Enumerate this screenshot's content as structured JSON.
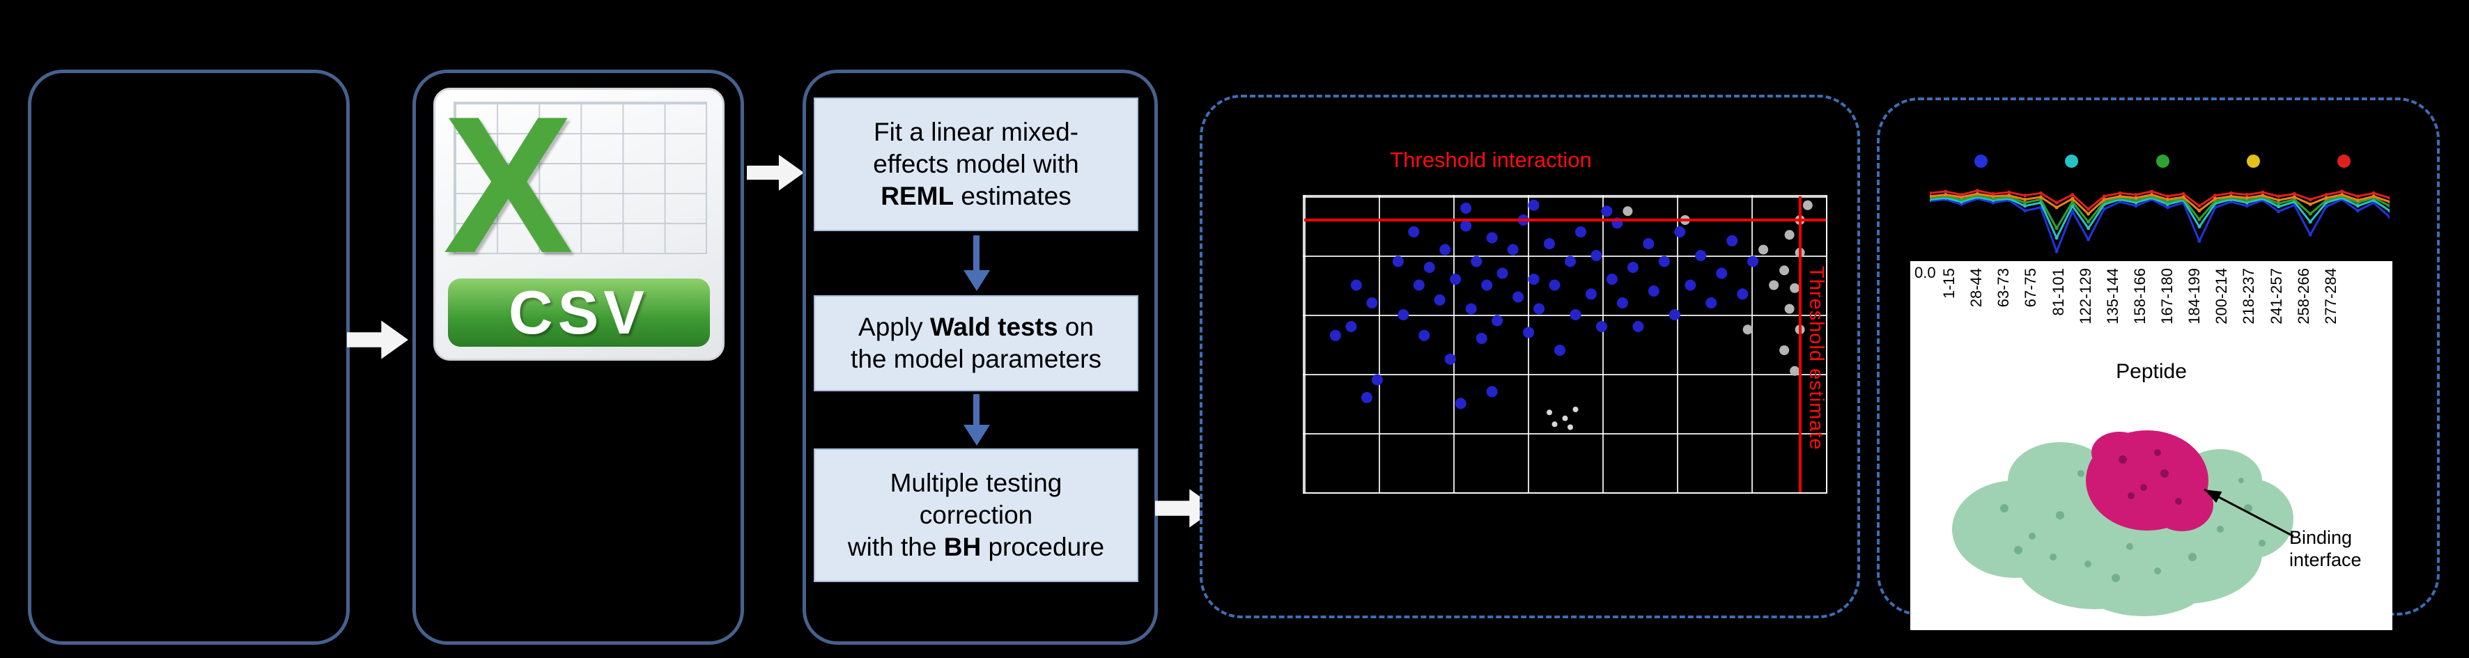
{
  "figure": {
    "background": "#000000",
    "solid_panel_border": "#46618e",
    "dashed_panel_border": "#3e6db6",
    "step_box_fill": "#dde7f4",
    "threshold_color": "#ff0c0c"
  },
  "csv": {
    "x_letter": "X",
    "label": "CSV"
  },
  "steps": {
    "s1": {
      "l1": "Fit a linear mixed-",
      "l2": "effects model with",
      "l3_bold": "REML",
      "l3_rest": " estimates"
    },
    "s2": {
      "l1_pre": "Apply ",
      "l1_bold": "Wald tests",
      "l1_post": " on",
      "l2": "the model parameters"
    },
    "s3": {
      "l1": "Multiple testing",
      "l2": "correction",
      "l3_pre": "with the ",
      "l3_bold": "BH",
      "l3_rest": " procedure"
    }
  },
  "results": {
    "binding_l1": "Binding",
    "binding_l2": "interface"
  },
  "chart_data": [
    {
      "type": "scatter",
      "name": "volcano-style-threshold-plot",
      "grid": {
        "cols": 7,
        "rows": 5,
        "grid_on": true,
        "background": "#000000",
        "gridline_color": "#ffffff"
      },
      "annotations": [
        "Threshold interaction",
        "Threshold estimate"
      ],
      "thresholds": {
        "horizontal_pct_from_top": 8,
        "vertical_pct_from_left": 95,
        "color": "#ee0000"
      },
      "series": [
        {
          "name": "blue-points",
          "color": "#2424cc",
          "r": 8,
          "points": [
            [
              6,
              47
            ],
            [
              9,
              44
            ],
            [
              10,
              30
            ],
            [
              12,
              68
            ],
            [
              13,
              36
            ],
            [
              14,
              62
            ],
            [
              18,
              22
            ],
            [
              19,
              40
            ],
            [
              21,
              12
            ],
            [
              22,
              30
            ],
            [
              23,
              47
            ],
            [
              24,
              24
            ],
            [
              26,
              35
            ],
            [
              27,
              18
            ],
            [
              28,
              55
            ],
            [
              29,
              28
            ],
            [
              30,
              70
            ],
            [
              31,
              4
            ],
            [
              31,
              10
            ],
            [
              32,
              38
            ],
            [
              33,
              22
            ],
            [
              34,
              48
            ],
            [
              35,
              30
            ],
            [
              36,
              14
            ],
            [
              36,
              66
            ],
            [
              37,
              42
            ],
            [
              38,
              26
            ],
            [
              40,
              18
            ],
            [
              41,
              34
            ],
            [
              42,
              8
            ],
            [
              43,
              46
            ],
            [
              44,
              3
            ],
            [
              44,
              28
            ],
            [
              45,
              38
            ],
            [
              47,
              16
            ],
            [
              48,
              30
            ],
            [
              49,
              52
            ],
            [
              51,
              22
            ],
            [
              52,
              40
            ],
            [
              53,
              12
            ],
            [
              55,
              33
            ],
            [
              56,
              20
            ],
            [
              57,
              44
            ],
            [
              58,
              5
            ],
            [
              59,
              28
            ],
            [
              60,
              9
            ],
            [
              61,
              36
            ],
            [
              63,
              24
            ],
            [
              64,
              44
            ],
            [
              66,
              16
            ],
            [
              67,
              32
            ],
            [
              69,
              22
            ],
            [
              71,
              40
            ],
            [
              72,
              12
            ],
            [
              74,
              30
            ],
            [
              76,
              20
            ],
            [
              78,
              36
            ],
            [
              80,
              26
            ],
            [
              82,
              15
            ],
            [
              84,
              33
            ],
            [
              86,
              22
            ]
          ]
        },
        {
          "name": "gray-points",
          "color": "#b5b5b5",
          "r": 7,
          "points": [
            [
              96.5,
              3
            ],
            [
              95,
              8
            ],
            [
              93,
              13
            ],
            [
              95,
              19
            ],
            [
              92,
              25
            ],
            [
              94,
              31
            ],
            [
              93,
              38
            ],
            [
              95,
              45
            ],
            [
              92,
              52
            ],
            [
              94,
              59
            ],
            [
              90,
              30
            ],
            [
              88,
              18
            ],
            [
              85,
              45
            ],
            [
              73,
              8
            ],
            [
              62,
              5
            ]
          ]
        },
        {
          "name": "faint-points",
          "color": "#d8d8d8",
          "r": 4,
          "points": [
            [
              47,
              73
            ],
            [
              50,
              75
            ],
            [
              52,
              72
            ],
            [
              48,
              77
            ],
            [
              51,
              78
            ]
          ]
        }
      ]
    },
    {
      "type": "line",
      "name": "peptide-profile-plot",
      "legend_dot_colors": [
        "#2233dd",
        "#27c3c3",
        "#2fa12f",
        "#e3c117",
        "#e02020"
      ],
      "y_tick": "0.0",
      "xlabel": "Peptide",
      "x_tick_labels": [
        "1-15",
        "28-44",
        "63-73",
        "67-75",
        "81-101",
        "122-129",
        "135-144",
        "158-166",
        "167-180",
        "184-199",
        "200-214",
        "218-237",
        "241-257",
        "258-266",
        "277-284"
      ],
      "series": [
        {
          "color": "#2233dd",
          "values": [
            32,
            30,
            36,
            29,
            34,
            31,
            44,
            40,
            95,
            45,
            80,
            42,
            33,
            38,
            30,
            40,
            34,
            82,
            40,
            33,
            38,
            31,
            45,
            37,
            74,
            39,
            30,
            44,
            34,
            52
          ]
        },
        {
          "color": "#27c3c3",
          "values": [
            30,
            28,
            33,
            27,
            31,
            29,
            38,
            34,
            78,
            38,
            66,
            36,
            30,
            34,
            28,
            36,
            31,
            64,
            35,
            30,
            34,
            29,
            39,
            33,
            58,
            34,
            28,
            38,
            31,
            44
          ]
        },
        {
          "color": "#2fa12f",
          "values": [
            28,
            26,
            30,
            25,
            29,
            27,
            34,
            30,
            66,
            33,
            58,
            33,
            28,
            31,
            26,
            33,
            29,
            55,
            32,
            28,
            31,
            27,
            35,
            30,
            48,
            31,
            26,
            34,
            28,
            38
          ]
        },
        {
          "color": "#f07f18",
          "values": [
            26,
            24,
            27,
            23,
            26,
            25,
            30,
            27,
            40,
            29,
            48,
            30,
            26,
            28,
            24,
            30,
            27,
            44,
            29,
            26,
            28,
            25,
            31,
            27,
            36,
            28,
            24,
            31,
            26,
            33
          ]
        },
        {
          "color": "#e02020",
          "values": [
            22,
            20,
            24,
            19,
            23,
            21,
            25,
            22,
            34,
            24,
            42,
            26,
            22,
            24,
            20,
            26,
            23,
            38,
            25,
            22,
            24,
            21,
            26,
            23,
            30,
            24,
            20,
            26,
            22,
            28
          ]
        }
      ]
    }
  ]
}
